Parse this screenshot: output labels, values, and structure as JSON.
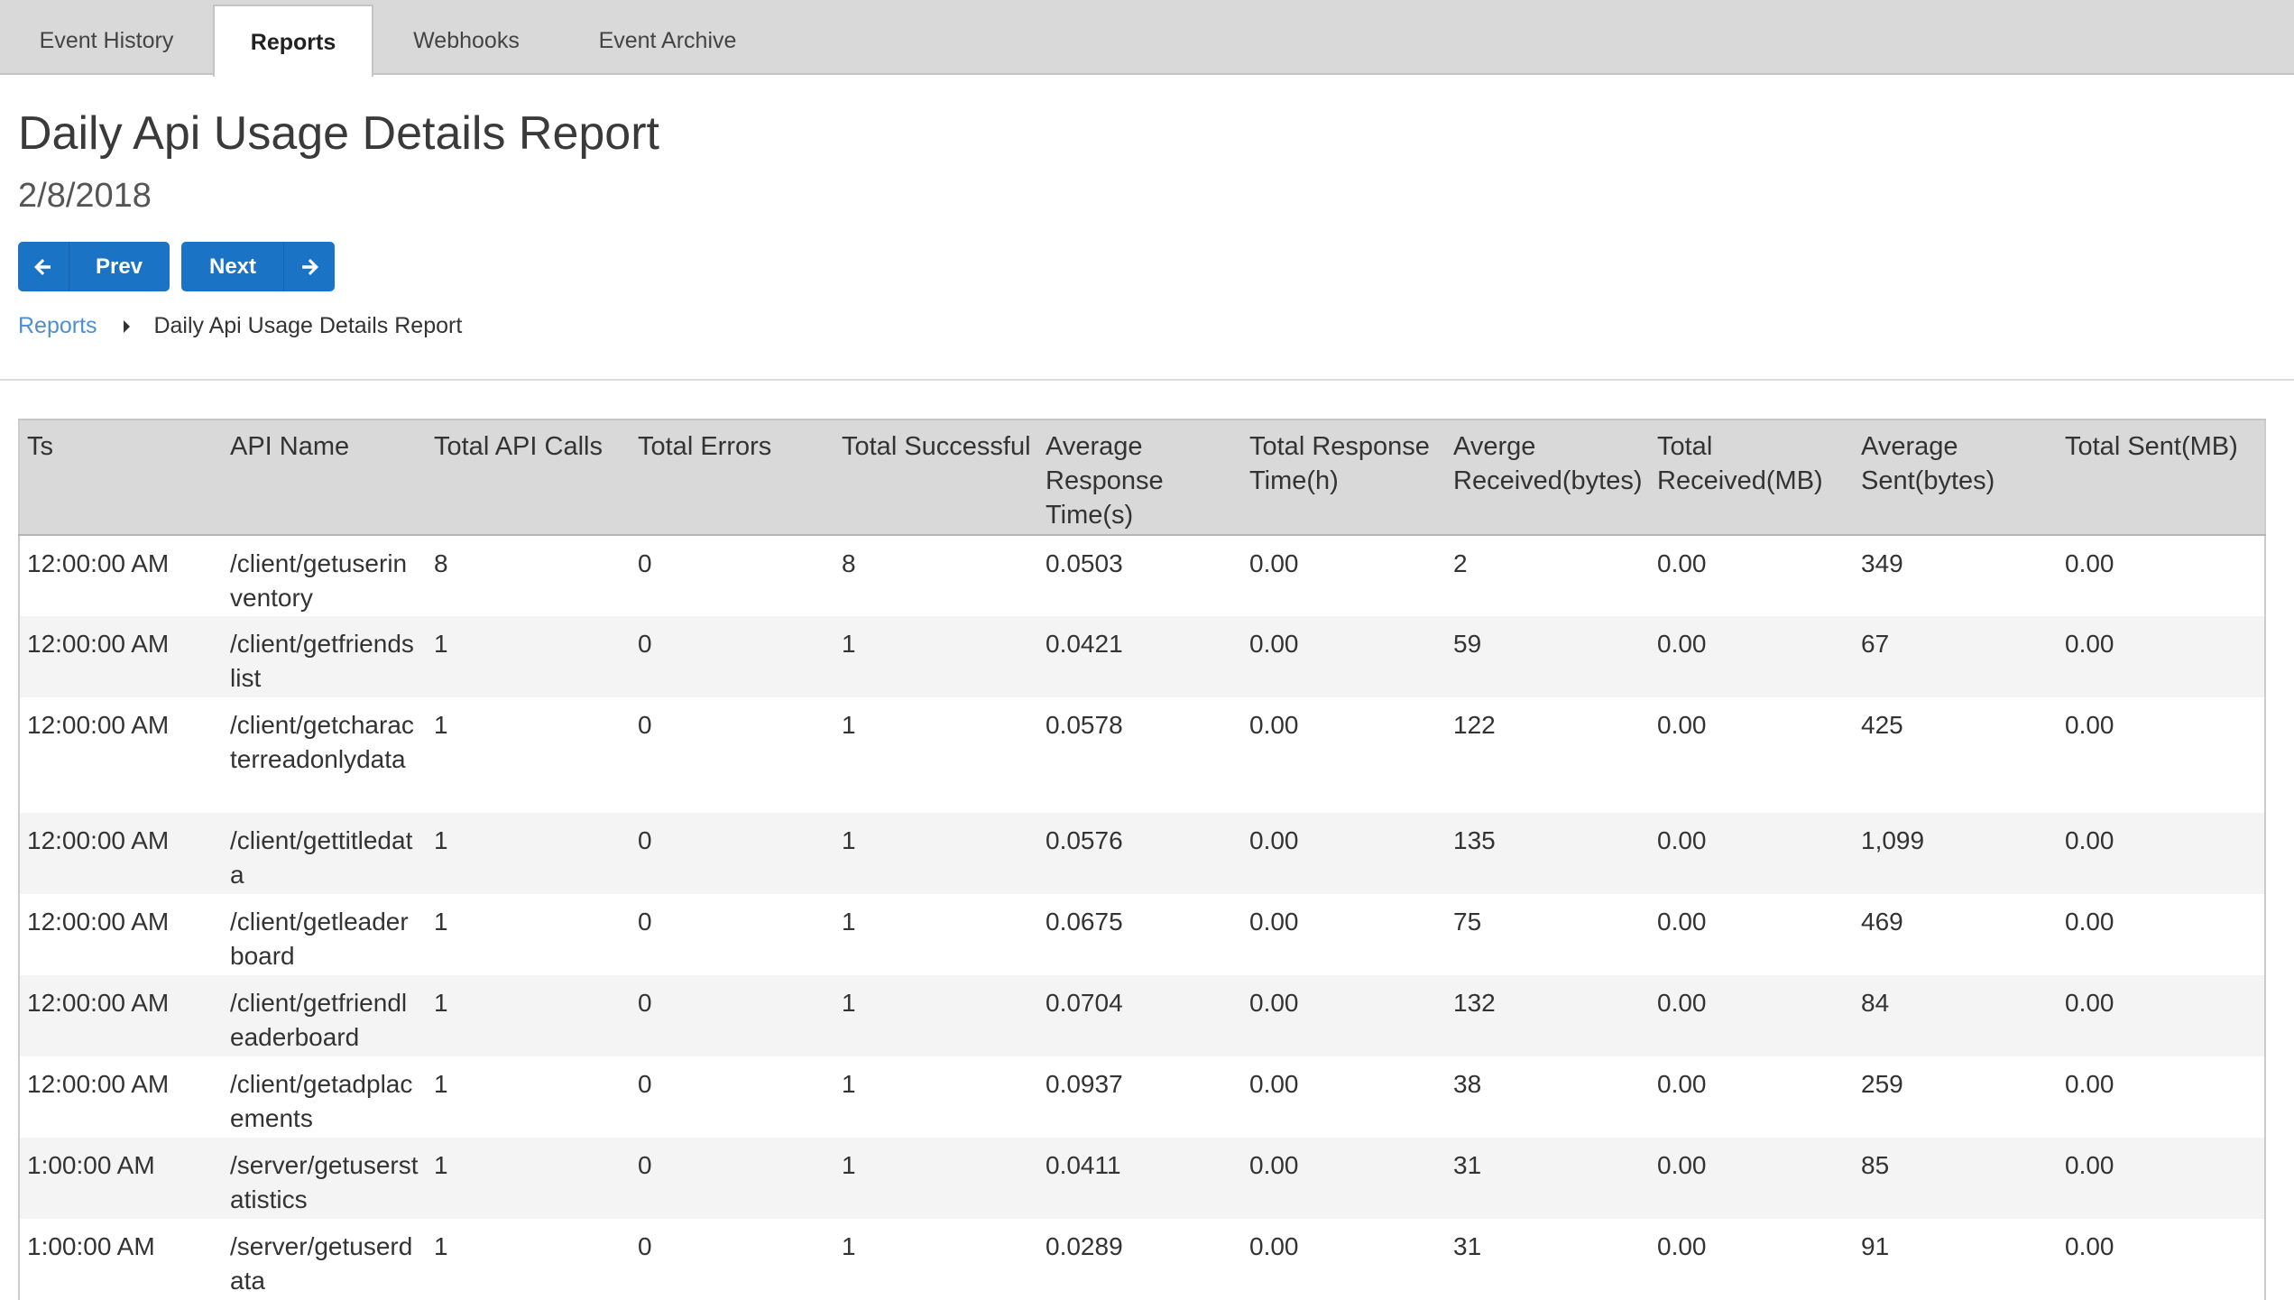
{
  "tabs": [
    {
      "label": "Event History",
      "active": false
    },
    {
      "label": "Reports",
      "active": true
    },
    {
      "label": "Webhooks",
      "active": false
    },
    {
      "label": "Event Archive",
      "active": false
    }
  ],
  "report": {
    "title": "Daily Api Usage Details Report",
    "date": "2/8/2018"
  },
  "nav": {
    "prev_label": "Prev",
    "next_label": "Next"
  },
  "breadcrumb": {
    "parent": "Reports",
    "current": "Daily Api Usage Details Report"
  },
  "table": {
    "columns": [
      "Ts",
      "API Name",
      "Total API Calls",
      "Total Errors",
      "Total Successful",
      "Average Response Time(s)",
      "Total Response Time(h)",
      "Averge Received(bytes)",
      "Total Received(MB)",
      "Average Sent(bytes)",
      "Total Sent(MB)"
    ],
    "rows": [
      [
        "12:00:00 AM",
        "/client/getuserinventory",
        "8",
        "0",
        "8",
        "0.0503",
        "0.00",
        "2",
        "0.00",
        "349",
        "0.00"
      ],
      [
        "12:00:00 AM",
        "/client/getfriendslist",
        "1",
        "0",
        "1",
        "0.0421",
        "0.00",
        "59",
        "0.00",
        "67",
        "0.00"
      ],
      [
        "12:00:00 AM",
        "/client/getcharacterreadonlydata",
        "1",
        "0",
        "1",
        "0.0578",
        "0.00",
        "122",
        "0.00",
        "425",
        "0.00"
      ],
      [
        "12:00:00 AM",
        "/client/gettitledata",
        "1",
        "0",
        "1",
        "0.0576",
        "0.00",
        "135",
        "0.00",
        "1,099",
        "0.00"
      ],
      [
        "12:00:00 AM",
        "/client/getleaderboard",
        "1",
        "0",
        "1",
        "0.0675",
        "0.00",
        "75",
        "0.00",
        "469",
        "0.00"
      ],
      [
        "12:00:00 AM",
        "/client/getfriendleaderboard",
        "1",
        "0",
        "1",
        "0.0704",
        "0.00",
        "132",
        "0.00",
        "84",
        "0.00"
      ],
      [
        "12:00:00 AM",
        "/client/getadplacements",
        "1",
        "0",
        "1",
        "0.0937",
        "0.00",
        "38",
        "0.00",
        "259",
        "0.00"
      ],
      [
        "1:00:00 AM",
        "/server/getuserstatistics",
        "1",
        "0",
        "1",
        "0.0411",
        "0.00",
        "31",
        "0.00",
        "85",
        "0.00"
      ],
      [
        "1:00:00 AM",
        "/server/getuserdata",
        "1",
        "0",
        "1",
        "0.0289",
        "0.00",
        "31",
        "0.00",
        "91",
        "0.00"
      ]
    ]
  },
  "colors": {
    "button": "#1a73c4",
    "link": "#4f8fd0",
    "tabbar": "#d9d9d9",
    "header": "#d9d9d9"
  },
  "icons": {
    "prev": "arrow-left-icon",
    "next": "arrow-right-icon",
    "breadcrumb_separator": "caret-right-icon"
  }
}
